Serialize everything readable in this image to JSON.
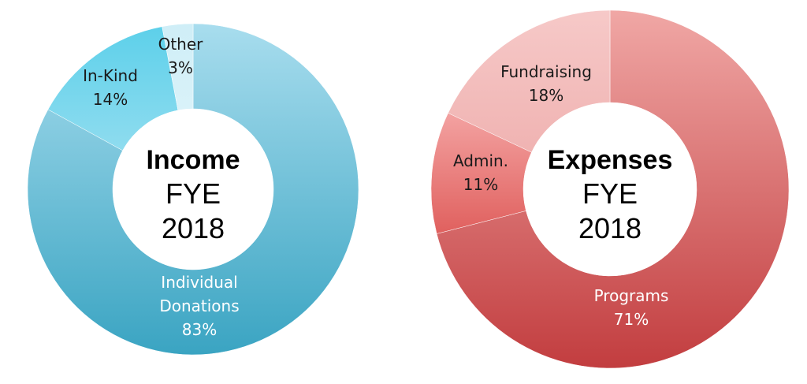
{
  "chart_data": [
    {
      "type": "pie",
      "center_title": "Income",
      "center_lines": [
        "FYE",
        "2018"
      ],
      "slices": [
        {
          "name": "Individual Donations",
          "label_lines": [
            "Individual",
            "Donations"
          ],
          "pct_label": "83%",
          "value": 83,
          "color_from": "#a8ddee",
          "color_to": "#3aa4c2",
          "text_color": "#ffffff"
        },
        {
          "name": "In-Kind",
          "label_lines": [
            "In-Kind"
          ],
          "pct_label": "14%",
          "value": 14,
          "color_from": "#5dd0ea",
          "color_to": "#8fdcef",
          "text_color": "#1a1a1a"
        },
        {
          "name": "Other",
          "label_lines": [
            "Other"
          ],
          "pct_label": "3%",
          "value": 3,
          "color_from": "#cfeef7",
          "color_to": "#d9f2f9",
          "text_color": "#1a1a1a"
        }
      ]
    },
    {
      "type": "pie",
      "center_title": "Expenses",
      "center_lines": [
        "FYE",
        "2018"
      ],
      "slices": [
        {
          "name": "Programs",
          "label_lines": [
            "Programs"
          ],
          "pct_label": "71%",
          "value": 71,
          "color_from": "#f0a7a5",
          "color_to": "#c23d3f",
          "text_color": "#ffffff"
        },
        {
          "name": "Admin.",
          "label_lines": [
            "Admin."
          ],
          "pct_label": "11%",
          "value": 11,
          "color_from": "#f3a2a1",
          "color_to": "#e0605e",
          "text_color": "#1a1a1a"
        },
        {
          "name": "Fundraising",
          "label_lines": [
            "Fundraising"
          ],
          "pct_label": "18%",
          "value": 18,
          "color_from": "#f6c9c8",
          "color_to": "#f0b3b2",
          "text_color": "#1a1a1a"
        }
      ]
    }
  ]
}
